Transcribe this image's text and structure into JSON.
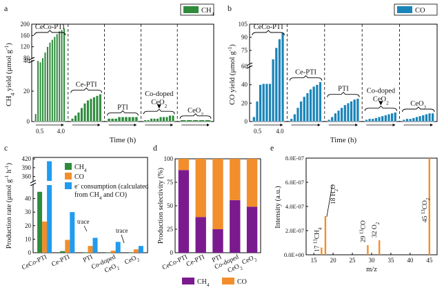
{
  "colors": {
    "ch4": "#2e8b3c",
    "co": "#1a84b8",
    "co_orange": "#f28e2b",
    "econs": "#1f9cf0",
    "purple": "#7b1a8f",
    "axis": "#000000"
  },
  "panels": {
    "a": "a",
    "b": "b",
    "c": "c",
    "d": "d",
    "e": "e"
  },
  "chart_data": [
    {
      "panel": "a",
      "type": "bar",
      "ylabel": "CH4 yield (μmol g-1)",
      "ylabel_main": "CH",
      "ylabel_sub": "4",
      "ylabel_rest": " yield (μmol g",
      "ylabel_sup": "-1",
      "ylabel_end": ")",
      "xlabel": "Time (h)",
      "legend": "CH",
      "legend_sub": "4",
      "yticks_low": [
        "0",
        "20",
        "40"
      ],
      "yticks_high": [
        "80",
        "120",
        "160",
        "200"
      ],
      "x_tick_labels": [
        "0.5",
        "4.0"
      ],
      "groups": [
        {
          "label": "CeCo-PTI",
          "values": [
            5,
            40,
            65,
            80,
            100,
            120,
            135,
            145,
            155,
            165,
            175,
            180,
            185
          ]
        },
        {
          "label": "Ce-PTI",
          "values": [
            2,
            4,
            6,
            9,
            12,
            14,
            15,
            16,
            17,
            18
          ]
        },
        {
          "label": "PTI",
          "values": [
            2,
            2,
            2,
            3,
            3,
            3,
            3,
            3,
            3
          ]
        },
        {
          "label": "Co-doped CeO2",
          "label_top": "Co-doped",
          "label_bottom": "CeO",
          "label_sub": "2",
          "values": [
            1,
            1,
            2,
            2,
            2,
            3,
            3,
            3,
            4,
            4
          ]
        },
        {
          "label": "CeO2",
          "label_main": "CeO",
          "label_sub": "2",
          "values": [
            1,
            1,
            1,
            1,
            1
          ]
        }
      ]
    },
    {
      "panel": "b",
      "type": "bar",
      "ylabel": "CO yield (μmol g-1)",
      "ylabel_main": "CO yield (μmol g",
      "ylabel_sup": "-1",
      "ylabel_end": ")",
      "xlabel": "Time (h)",
      "legend": "CO",
      "yticks_low": [
        "0",
        "20",
        "40",
        "60"
      ],
      "yticks_high": [
        "75",
        "90",
        "105"
      ],
      "x_tick_labels": [
        "0.5",
        "4.0"
      ],
      "groups": [
        {
          "label": "CeCo-PTI",
          "values": [
            5,
            22,
            40,
            41,
            41,
            41,
            65,
            78,
            88,
            95
          ]
        },
        {
          "label": "Ce-PTI",
          "values": [
            3,
            8,
            15,
            22,
            27,
            31,
            35,
            38,
            40,
            43
          ]
        },
        {
          "label": "PTI",
          "values": [
            2,
            5,
            9,
            12,
            15,
            18,
            20,
            22,
            24,
            25
          ]
        },
        {
          "label": "Co-doped CeO2",
          "label_top": "Co-doped",
          "label_bottom": "CeO",
          "label_sub": "2",
          "values": [
            2,
            3,
            3,
            4,
            5,
            6,
            7,
            8,
            9,
            10
          ]
        },
        {
          "label": "CeO2",
          "label_main": "CeO",
          "label_sub": "2",
          "values": [
            2,
            3,
            3,
            4,
            5,
            6,
            7,
            8,
            9,
            9
          ]
        }
      ]
    },
    {
      "panel": "c",
      "type": "bar",
      "ylabel": "Production rate (μmol g-1 h-1)",
      "ylabel_main": "Production rate (μmol g",
      "ylabel_sup1": "-1",
      "ylabel_mid": " h",
      "ylabel_sup2": "-1",
      "ylabel_end": ")",
      "yticks_low": [
        "0",
        "10",
        "20",
        "30",
        "40"
      ],
      "yticks_high": [
        "360",
        "390",
        "420"
      ],
      "categories": [
        "CeCo-PTI",
        "Ce-PTI",
        "PTI",
        "Co-doped CeO2",
        "CeO2"
      ],
      "category_labels": [
        {
          "main": "CeCo-PTI"
        },
        {
          "main": "Ce-PTI"
        },
        {
          "main": "PTI"
        },
        {
          "main": "Co-doped",
          "line2": "CeO",
          "sub": "2"
        },
        {
          "main": "CeO",
          "sub": "2"
        }
      ],
      "series": [
        {
          "name": "CH4",
          "legend_main": "CH",
          "legend_sub": "4",
          "values": [
            45,
            1.2,
            0.1,
            0.1,
            0.05
          ]
        },
        {
          "name": "CO",
          "legend_main": "CO",
          "values": [
            23,
            9.5,
            5,
            1.5,
            2.5
          ]
        },
        {
          "name": "e- consumption (calculated from CH4 and CO)",
          "legend_line1": "e",
          "legend_line1_sup": "-",
          "legend_line1_rest": " consumption (calculated",
          "legend_line2": "from CH",
          "legend_line2_sub": "4",
          "legend_line2_rest": " and CO)",
          "values": [
            412,
            30,
            11,
            8,
            5
          ]
        }
      ],
      "annotations": [
        "trace",
        "trace"
      ]
    },
    {
      "panel": "d",
      "type": "bar",
      "ylabel": "Production selectivity (%)",
      "yticks": [
        "0",
        "25",
        "50",
        "75",
        "100"
      ],
      "ylim": [
        0,
        100
      ],
      "categories": [
        "CeCo-PTI",
        "Ce-PTI",
        "PTI",
        "Co-doped CeO2",
        "CeO2"
      ],
      "category_labels": [
        {
          "main": "CeCo-PTI"
        },
        {
          "main": "Ce-PTI"
        },
        {
          "main": "PTI"
        },
        {
          "main": "Co-doped",
          "line2": "CeO",
          "sub": "2"
        },
        {
          "main": "CeO",
          "sub": "2"
        }
      ],
      "series": [
        {
          "name": "CH4",
          "legend_main": "CH",
          "legend_sub": "4",
          "values": [
            88,
            38,
            25,
            56,
            49
          ]
        },
        {
          "name": "CO",
          "legend_main": "CO",
          "values": [
            12,
            62,
            75,
            44,
            51
          ]
        }
      ]
    },
    {
      "panel": "e",
      "type": "bar",
      "xlabel": "m/z",
      "ylabel": "Intensity (a.u.)",
      "yticks": [
        "0.0E+00",
        "2.0E-07",
        "4.0E-07",
        "6.0E-07",
        "8.0E-07"
      ],
      "ylim": [
        0,
        8e-07
      ],
      "xticks": [
        "15",
        "20",
        "25",
        "30",
        "35",
        "40",
        "45"
      ],
      "xlim": [
        13,
        47
      ],
      "peaks": [
        {
          "mz": 17,
          "value": 6e-08,
          "label_pre": "17 ",
          "label_sup": "13",
          "label_main": "CH",
          "label_sub": "4"
        },
        {
          "mz": 18,
          "value": 3.2e-07,
          "label_pre": "18 H",
          "label_sub": "2",
          "label_main": "O"
        },
        {
          "mz": 29,
          "value": 8e-08,
          "label_pre": "29 ",
          "label_sup": "13",
          "label_main": "CO"
        },
        {
          "mz": 32,
          "value": 1.2e-07,
          "label_pre": "32 O",
          "label_sub": "2"
        },
        {
          "mz": 45,
          "value": 8e-07,
          "label_pre": "45 ",
          "label_sup": "13",
          "label_main": "CO",
          "label_sub": "2"
        }
      ]
    }
  ]
}
